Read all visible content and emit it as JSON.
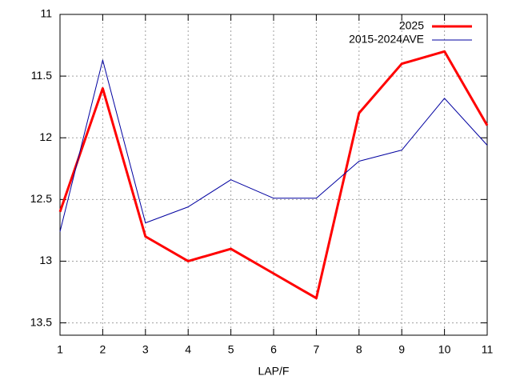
{
  "chart_data": {
    "type": "line",
    "x_label": "LAP/F",
    "x": [
      1,
      2,
      3,
      4,
      5,
      6,
      7,
      8,
      9,
      10,
      11
    ],
    "series": [
      {
        "name": "2025",
        "color": "#ff0000",
        "values": [
          12.6,
          11.6,
          12.8,
          13.0,
          12.9,
          13.1,
          13.3,
          11.8,
          11.4,
          11.3,
          11.9
        ]
      },
      {
        "name": "2015-2024AVE",
        "color": "#0000a0",
        "values": [
          12.76,
          11.37,
          12.69,
          12.56,
          12.34,
          12.49,
          12.49,
          12.19,
          12.1,
          11.68,
          12.06
        ]
      }
    ],
    "xlim": [
      1,
      11
    ],
    "xticks": [
      1,
      2,
      3,
      4,
      5,
      6,
      7,
      8,
      9,
      10,
      11
    ],
    "ylim": [
      11,
      13.6
    ],
    "yticks": [
      11,
      11.5,
      12,
      12.5,
      13,
      13.5
    ],
    "y_reversed": true,
    "grid": true,
    "legend": "top-right"
  }
}
